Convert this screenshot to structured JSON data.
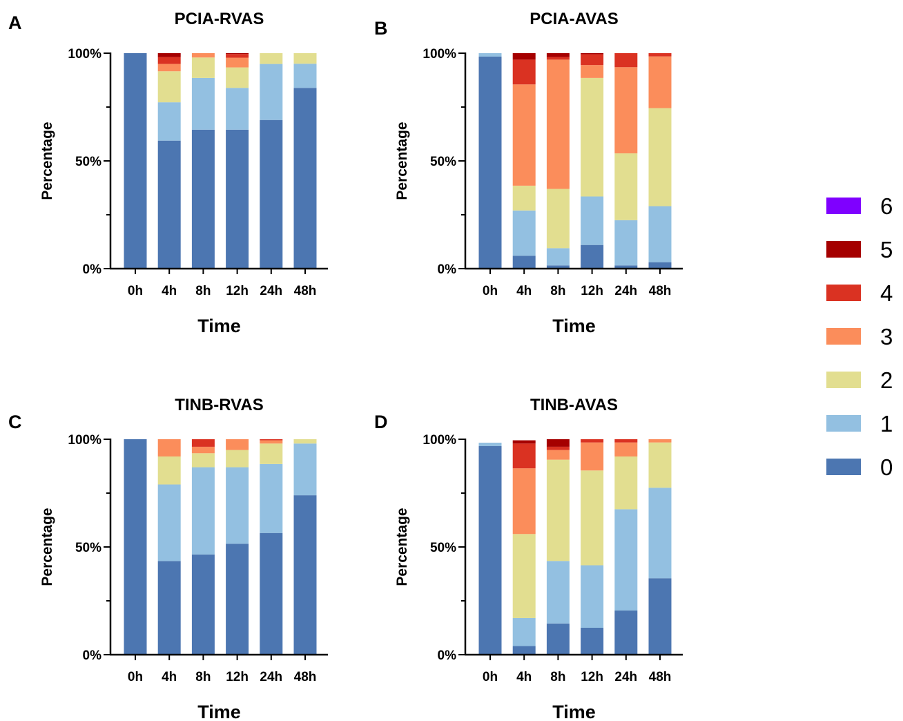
{
  "legend": {
    "entries": [
      {
        "label": "6",
        "color": "#7F00FF"
      },
      {
        "label": "5",
        "color": "#A50000"
      },
      {
        "label": "4",
        "color": "#DA3222"
      },
      {
        "label": "3",
        "color": "#FB8D5B"
      },
      {
        "label": "2",
        "color": "#E2DE90"
      },
      {
        "label": "1",
        "color": "#93C0E1"
      },
      {
        "label": "0",
        "color": "#4C76B1"
      }
    ]
  },
  "chart_data": [
    {
      "panel": "A",
      "type": "bar",
      "stacked": true,
      "title": "PCIA-RVAS",
      "xlabel": "Time",
      "ylabel": "Percentage",
      "categories": [
        "0h",
        "4h",
        "8h",
        "12h",
        "24h",
        "48h"
      ],
      "yticks": [
        "0%",
        "50%",
        "100%"
      ],
      "ylim": [
        0,
        100
      ],
      "series": [
        {
          "name": "0",
          "values": [
            100,
            59.4,
            64.5,
            64.5,
            69,
            83.9
          ]
        },
        {
          "name": "1",
          "values": [
            0,
            17.8,
            24,
            19.4,
            26,
            11.2
          ]
        },
        {
          "name": "2",
          "values": [
            0,
            14.4,
            9.5,
            9.5,
            5,
            4.9
          ]
        },
        {
          "name": "3",
          "values": [
            0,
            3.4,
            2,
            4.5,
            0,
            0
          ]
        },
        {
          "name": "4",
          "values": [
            0,
            3.2,
            0,
            1.7,
            0,
            0
          ]
        },
        {
          "name": "5",
          "values": [
            0,
            1.8,
            0,
            0.4,
            0,
            0
          ]
        },
        {
          "name": "6",
          "values": [
            0,
            0,
            0,
            0,
            0,
            0
          ]
        }
      ]
    },
    {
      "panel": "B",
      "type": "bar",
      "stacked": true,
      "title": "PCIA-AVAS",
      "xlabel": "Time",
      "ylabel": "Percentage",
      "categories": [
        "0h",
        "4h",
        "8h",
        "12h",
        "24h",
        "48h"
      ],
      "yticks": [
        "0%",
        "50%",
        "100%"
      ],
      "ylim": [
        0,
        100
      ],
      "series": [
        {
          "name": "0",
          "values": [
            98.4,
            6,
            1.5,
            11,
            1.5,
            3
          ]
        },
        {
          "name": "1",
          "values": [
            1.6,
            21,
            8,
            22.5,
            21,
            26
          ]
        },
        {
          "name": "2",
          "values": [
            0,
            11.5,
            27.5,
            55,
            31,
            45.5
          ]
        },
        {
          "name": "3",
          "values": [
            0,
            47,
            60,
            6,
            40,
            24
          ]
        },
        {
          "name": "4",
          "values": [
            0,
            11.5,
            1.2,
            5,
            6.5,
            1.5
          ]
        },
        {
          "name": "5",
          "values": [
            0,
            3,
            1.8,
            0.5,
            0,
            0
          ]
        },
        {
          "name": "6",
          "values": [
            0,
            0,
            0,
            0,
            0,
            0
          ]
        }
      ]
    },
    {
      "panel": "C",
      "type": "bar",
      "stacked": true,
      "title": "TINB-RVAS",
      "xlabel": "Time",
      "ylabel": "Percentage",
      "categories": [
        "0h",
        "4h",
        "8h",
        "12h",
        "24h",
        "48h"
      ],
      "yticks": [
        "0%",
        "50%",
        "100%"
      ],
      "ylim": [
        0,
        100
      ],
      "series": [
        {
          "name": "0",
          "values": [
            100,
            43.5,
            46.5,
            51.5,
            56.5,
            74
          ]
        },
        {
          "name": "1",
          "values": [
            0,
            35.5,
            40.5,
            35.5,
            32,
            24
          ]
        },
        {
          "name": "2",
          "values": [
            0,
            13,
            6.5,
            8,
            9.5,
            2
          ]
        },
        {
          "name": "3",
          "values": [
            0,
            8,
            3,
            5,
            1.5,
            0
          ]
        },
        {
          "name": "4",
          "values": [
            0,
            0,
            3.5,
            0,
            0.5,
            0
          ]
        },
        {
          "name": "5",
          "values": [
            0,
            0,
            0,
            0,
            0,
            0
          ]
        },
        {
          "name": "6",
          "values": [
            0,
            0,
            0,
            0,
            0,
            0
          ]
        }
      ]
    },
    {
      "panel": "D",
      "type": "bar",
      "stacked": true,
      "title": "TINB-AVAS",
      "xlabel": "Time",
      "ylabel": "Percentage",
      "categories": [
        "0h",
        "4h",
        "8h",
        "12h",
        "24h",
        "48h"
      ],
      "yticks": [
        "0%",
        "50%",
        "100%"
      ],
      "ylim": [
        0,
        100
      ],
      "series": [
        {
          "name": "0",
          "values": [
            96.8,
            4,
            14.5,
            12.5,
            20.5,
            35.5
          ]
        },
        {
          "name": "1",
          "values": [
            1.6,
            13,
            29,
            29,
            47,
            42
          ]
        },
        {
          "name": "2",
          "values": [
            0,
            39,
            47,
            44,
            24.5,
            21
          ]
        },
        {
          "name": "3",
          "values": [
            0,
            30.5,
            4.5,
            13,
            6.5,
            1.5
          ]
        },
        {
          "name": "4",
          "values": [
            0,
            11.5,
            1.5,
            1.5,
            1.5,
            0
          ]
        },
        {
          "name": "5",
          "values": [
            0,
            1.5,
            3.5,
            0,
            0,
            0
          ]
        },
        {
          "name": "6",
          "values": [
            0,
            0,
            0,
            0,
            0,
            0
          ]
        }
      ]
    }
  ]
}
